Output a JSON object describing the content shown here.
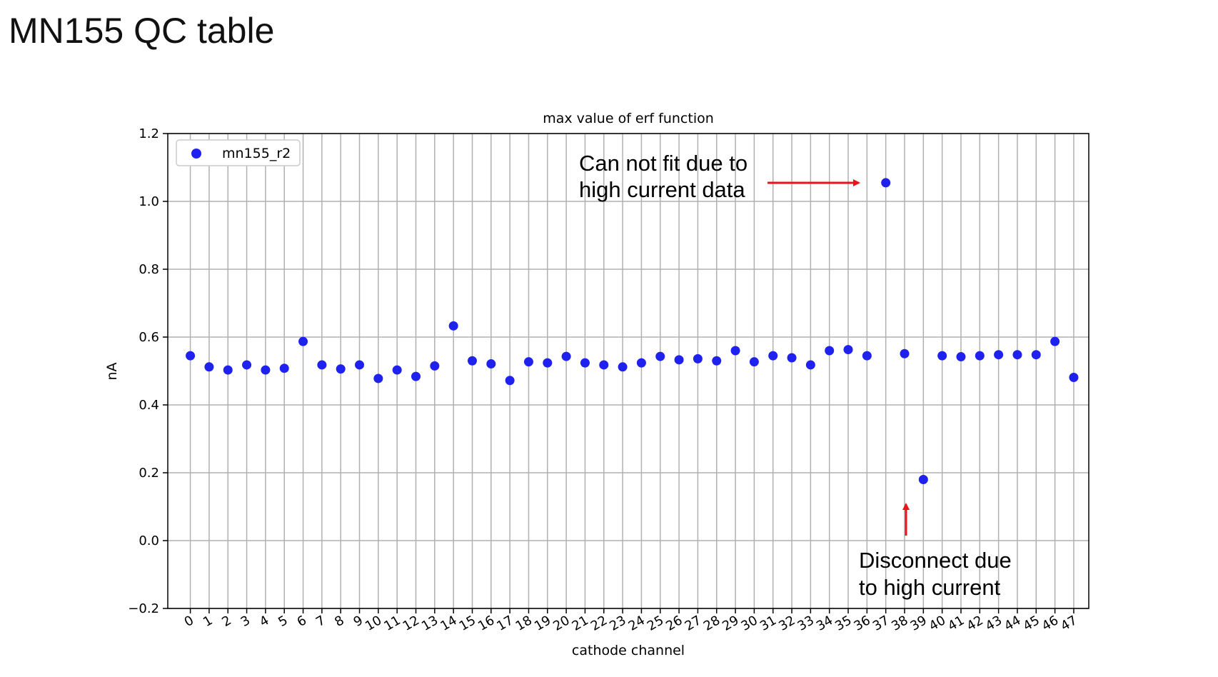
{
  "slide": {
    "title": "MN155 QC table"
  },
  "chart_data": {
    "type": "scatter",
    "title": "max value of erf function",
    "xlabel": "cathode channel",
    "ylabel": "nA",
    "ylim": [
      -0.2,
      1.2
    ],
    "xlim": [
      -1.2,
      47.8
    ],
    "yticks": [
      -0.2,
      0.0,
      0.2,
      0.4,
      0.6,
      0.8,
      1.0,
      1.2
    ],
    "ytick_labels": [
      "−0.2",
      "0.0",
      "0.2",
      "0.4",
      "0.6",
      "0.8",
      "1.0",
      "1.2"
    ],
    "categories": [
      "0",
      "1",
      "2",
      "3",
      "4",
      "5",
      "6",
      "7",
      "8",
      "9",
      "10",
      "11",
      "12",
      "13",
      "14",
      "15",
      "16",
      "17",
      "18",
      "19",
      "20",
      "21",
      "22",
      "23",
      "24",
      "25",
      "26",
      "27",
      "28",
      "29",
      "30",
      "31",
      "32",
      "33",
      "34",
      "35",
      "36",
      "37",
      "38",
      "39",
      "40",
      "41",
      "42",
      "43",
      "44",
      "45",
      "46",
      "47"
    ],
    "grid": true,
    "legend_position": "top-left",
    "series": [
      {
        "name": "mn155_r2",
        "color": "#1f22ee",
        "x": [
          0,
          1,
          2,
          3,
          4,
          5,
          6,
          7,
          8,
          9,
          10,
          11,
          12,
          13,
          14,
          15,
          16,
          17,
          18,
          19,
          20,
          21,
          22,
          23,
          24,
          25,
          26,
          27,
          28,
          29,
          30,
          31,
          32,
          33,
          34,
          35,
          36,
          37,
          38,
          39,
          40,
          41,
          42,
          43,
          44,
          45,
          46,
          47
        ],
        "values": [
          0.545,
          0.512,
          0.503,
          0.518,
          0.503,
          0.508,
          0.587,
          0.518,
          0.506,
          0.518,
          0.478,
          0.503,
          0.484,
          0.515,
          0.633,
          0.53,
          0.521,
          0.472,
          0.527,
          0.524,
          0.543,
          0.524,
          0.518,
          0.512,
          0.524,
          0.543,
          0.533,
          0.536,
          0.53,
          0.56,
          0.527,
          0.545,
          0.539,
          0.518,
          0.56,
          0.563,
          0.545,
          1.055,
          0.551,
          0.18,
          0.545,
          0.542,
          0.545,
          0.548,
          0.548,
          0.548,
          0.587,
          0.481
        ]
      }
    ],
    "annotations": [
      {
        "text_lines": [
          "Can not fit due to",
          "high current data"
        ],
        "arrow_color": "#e8141c",
        "points_to_channel": "37"
      },
      {
        "text_lines": [
          "Disconnect due",
          "to high current"
        ],
        "arrow_color": "#e8141c",
        "points_to_channel": "39"
      }
    ]
  }
}
